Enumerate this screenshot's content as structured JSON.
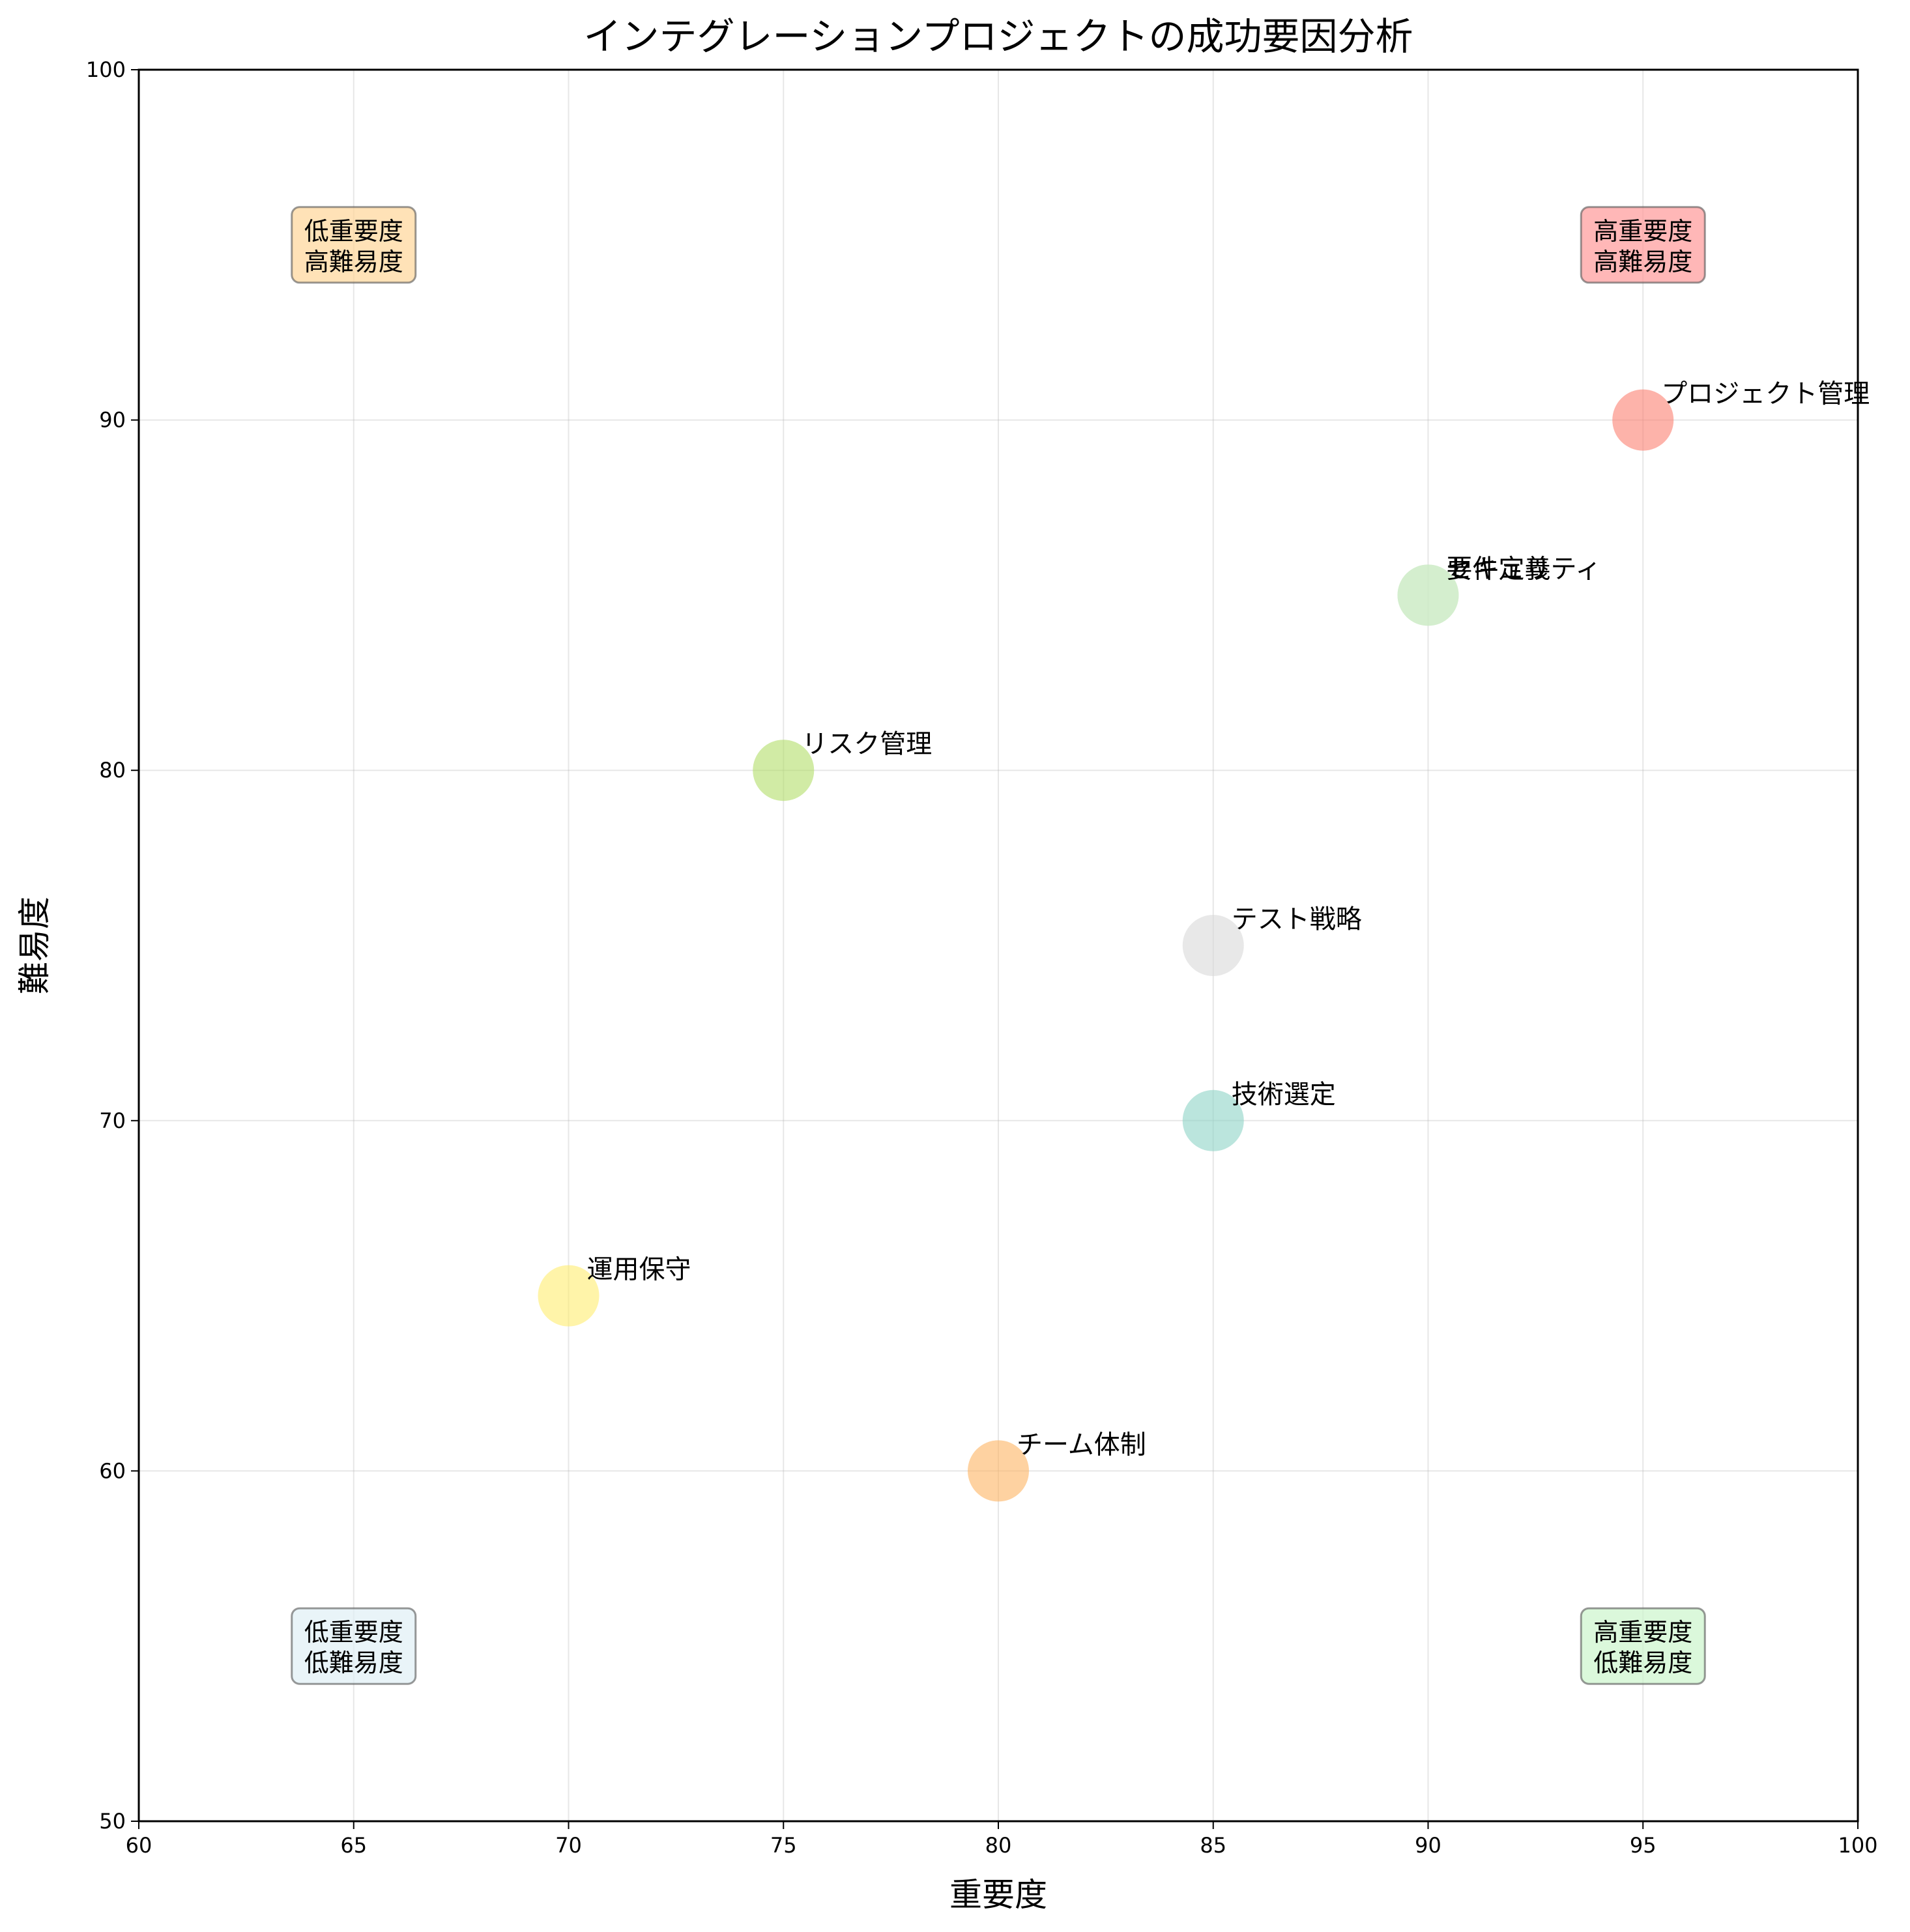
{
  "chart_data": {
    "type": "scatter",
    "title": "インテグレーションプロジェクトの成功要因分析",
    "xlabel": "重要度",
    "ylabel": "難易度",
    "xlim": [
      60,
      100
    ],
    "ylim": [
      50,
      100
    ],
    "xticks": [
      60,
      65,
      70,
      75,
      80,
      85,
      90,
      95,
      100
    ],
    "yticks": [
      50,
      60,
      70,
      80,
      90,
      100
    ],
    "grid": true,
    "points": [
      {
        "label": "技術選定",
        "x": 85,
        "y": 70,
        "color": "#8dd3c7"
      },
      {
        "label": "運用保守",
        "x": 70,
        "y": 65,
        "color": "#ffed6f"
      },
      {
        "label": "テスト戦略",
        "x": 85,
        "y": 75,
        "color": "#d9d9d9"
      },
      {
        "label": "要件定義",
        "x": 90,
        "y": 85,
        "color": "#ccebc5"
      },
      {
        "label": "セキュリティ",
        "x": 90,
        "y": 85,
        "color": "#ccebc5"
      },
      {
        "label": "リスク管理",
        "x": 75,
        "y": 80,
        "color": "#b3de69"
      },
      {
        "label": "プロジェクト管理",
        "x": 95,
        "y": 90,
        "color": "#fb8072"
      },
      {
        "label": "チーム体制",
        "x": 80,
        "y": 60,
        "color": "#fdb462"
      }
    ],
    "quadrant_labels": [
      {
        "lines": [
          "低重要度",
          "高難易度"
        ],
        "x": 65,
        "y": 95,
        "color": "#ffd699"
      },
      {
        "lines": [
          "高重要度",
          "高難易度"
        ],
        "x": 95,
        "y": 95,
        "color": "#ff9999"
      },
      {
        "lines": [
          "低重要度",
          "低難易度"
        ],
        "x": 65,
        "y": 55,
        "color": "#e0f0f5"
      },
      {
        "lines": [
          "高重要度",
          "低難易度"
        ],
        "x": 95,
        "y": 55,
        "color": "#ccf5cc"
      }
    ]
  }
}
